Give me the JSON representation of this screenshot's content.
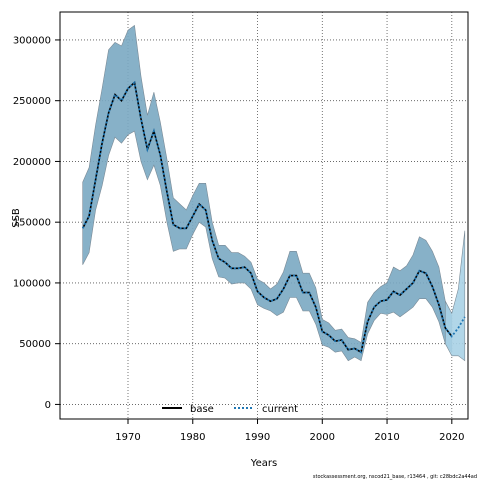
{
  "chart_data": {
    "type": "line",
    "xlabel": "Years",
    "ylabel": "SSB",
    "xlim": [
      1959.5,
      2022.5
    ],
    "ylim": [
      -12000,
      323000
    ],
    "xticks": [
      1970,
      1980,
      1990,
      2000,
      2010,
      2020
    ],
    "yticks": [
      0,
      50000,
      100000,
      150000,
      200000,
      250000,
      300000
    ],
    "grid": true,
    "legend_position": "bottom-center",
    "footer": "stockassessment.org, nscod21_base, r13464 , git: c28bdc2a44ad",
    "series": [
      {
        "name": "base",
        "style": "solid",
        "color": "#000000",
        "x": [
          1963,
          1964,
          1965,
          1966,
          1967,
          1968,
          1969,
          1970,
          1971,
          1972,
          1973,
          1974,
          1975,
          1976,
          1977,
          1978,
          1979,
          1980,
          1981,
          1982,
          1983,
          1984,
          1985,
          1986,
          1987,
          1988,
          1989,
          1990,
          1991,
          1992,
          1993,
          1994,
          1995,
          1996,
          1997,
          1998,
          1999,
          2000,
          2001,
          2002,
          2003,
          2004,
          2005,
          2006,
          2007,
          2008,
          2009,
          2010,
          2011,
          2012,
          2013,
          2014,
          2015,
          2016,
          2017,
          2018,
          2019,
          2020
        ],
        "y": [
          145000,
          155000,
          185000,
          215000,
          240000,
          255000,
          250000,
          260000,
          265000,
          235000,
          210000,
          225000,
          205000,
          175000,
          148000,
          145000,
          145000,
          155000,
          165000,
          160000,
          135000,
          120000,
          117000,
          112000,
          112000,
          113000,
          108000,
          93000,
          88000,
          85000,
          87000,
          95000,
          106000,
          106000,
          92000,
          92000,
          80000,
          60000,
          57000,
          52000,
          53000,
          45000,
          46000,
          43000,
          68000,
          80000,
          85000,
          86000,
          93000,
          90000,
          95000,
          100000,
          110000,
          108000,
          97000,
          82000,
          63000,
          56000
        ]
      },
      {
        "name": "current",
        "style": "dotted",
        "color": "#1f77b4",
        "x": [
          1963,
          1964,
          1965,
          1966,
          1967,
          1968,
          1969,
          1970,
          1971,
          1972,
          1973,
          1974,
          1975,
          1976,
          1977,
          1978,
          1979,
          1980,
          1981,
          1982,
          1983,
          1984,
          1985,
          1986,
          1987,
          1988,
          1989,
          1990,
          1991,
          1992,
          1993,
          1994,
          1995,
          1996,
          1997,
          1998,
          1999,
          2000,
          2001,
          2002,
          2003,
          2004,
          2005,
          2006,
          2007,
          2008,
          2009,
          2010,
          2011,
          2012,
          2013,
          2014,
          2015,
          2016,
          2017,
          2018,
          2019,
          2020,
          2021,
          2022
        ],
        "y": [
          145000,
          155000,
          185000,
          215000,
          240000,
          255000,
          250000,
          260000,
          265000,
          235000,
          210000,
          225000,
          205000,
          175000,
          148000,
          145000,
          145000,
          155000,
          165000,
          160000,
          135000,
          120000,
          117000,
          112000,
          112000,
          113000,
          108000,
          93000,
          88000,
          85000,
          87000,
          95000,
          106000,
          106000,
          92000,
          92000,
          80000,
          60000,
          57000,
          52000,
          53000,
          45000,
          46000,
          43000,
          68000,
          80000,
          85000,
          86000,
          93000,
          90000,
          95000,
          100000,
          110000,
          108000,
          97000,
          82000,
          63000,
          56000,
          63000,
          72000
        ]
      }
    ],
    "bands": [
      {
        "name": "base",
        "color": "#7aa8c2",
        "x": [
          1963,
          1964,
          1965,
          1966,
          1967,
          1968,
          1969,
          1970,
          1971,
          1972,
          1973,
          1974,
          1975,
          1976,
          1977,
          1978,
          1979,
          1980,
          1981,
          1982,
          1983,
          1984,
          1985,
          1986,
          1987,
          1988,
          1989,
          1990,
          1991,
          1992,
          1993,
          1994,
          1995,
          1996,
          1997,
          1998,
          1999,
          2000,
          2001,
          2002,
          2003,
          2004,
          2005,
          2006,
          2007,
          2008,
          2009,
          2010,
          2011,
          2012,
          2013,
          2014,
          2015,
          2016,
          2017,
          2018,
          2019,
          2020
        ],
        "lower": [
          115000,
          125000,
          160000,
          180000,
          205000,
          220000,
          215000,
          222000,
          225000,
          200000,
          185000,
          197000,
          180000,
          150000,
          126000,
          128000,
          128000,
          140000,
          150000,
          146000,
          120000,
          105000,
          104000,
          99000,
          100000,
          100000,
          95000,
          82000,
          79000,
          77000,
          73000,
          76000,
          88000,
          88000,
          77000,
          77000,
          66000,
          49000,
          47000,
          43000,
          44000,
          36000,
          39000,
          36000,
          58000,
          69000,
          75000,
          74000,
          76000,
          72000,
          76000,
          80000,
          87000,
          87000,
          80000,
          68000,
          50000,
          43000
        ],
        "upper": [
          183000,
          195000,
          230000,
          260000,
          292000,
          298000,
          295000,
          308000,
          312000,
          270000,
          238000,
          257000,
          232000,
          202000,
          170000,
          165000,
          160000,
          172000,
          182000,
          182000,
          150000,
          131000,
          131000,
          125000,
          125000,
          122000,
          117000,
          103000,
          100000,
          95000,
          99000,
          109000,
          126000,
          126000,
          108000,
          108000,
          96000,
          70000,
          67000,
          61000,
          62000,
          55000,
          54000,
          51000,
          84000,
          92000,
          97000,
          100000,
          113000,
          110000,
          114000,
          123000,
          138000,
          135000,
          126000,
          113000,
          85000,
          73000
        ]
      },
      {
        "name": "current",
        "color": "#a9d1e6",
        "x": [
          2019,
          2020,
          2021,
          2022
        ],
        "lower": [
          50000,
          40000,
          40000,
          36000
        ],
        "upper": [
          85000,
          75000,
          95000,
          143000
        ]
      }
    ]
  }
}
